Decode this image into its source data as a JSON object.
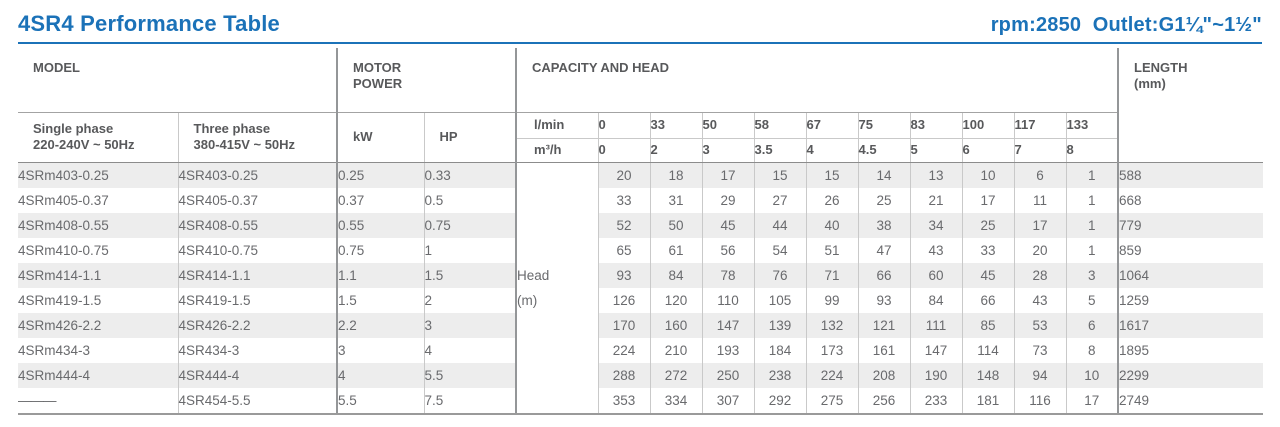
{
  "page": {
    "title": "4SR4 Performance Table",
    "subtitle_right": "rpm:2850  Outlet:G1¼\"~1½\"",
    "accent_color": "#1b72b8"
  },
  "table": {
    "headers": {
      "model": "MODEL",
      "motor_power_line1": "MOTOR",
      "motor_power_line2": "POWER",
      "capacity_and_head": "CAPACITY AND HEAD",
      "length_line1": "LENGTH",
      "length_line2": "(mm)",
      "single_phase_line1": "Single phase",
      "single_phase_line2": "220-240V ~ 50Hz",
      "three_phase_line1": "Three phase",
      "three_phase_line2": "380-415V ~ 50Hz",
      "kw": "kW",
      "hp": "HP",
      "flow_lmin_label": "l/min",
      "flow_m3h_label": "m³/h",
      "head_label_line1": "Head",
      "head_label_line2": "(m)"
    },
    "flow_lmin": [
      "0",
      "33",
      "50",
      "58",
      "67",
      "75",
      "83",
      "100",
      "117",
      "133"
    ],
    "flow_m3h": [
      "0",
      "2",
      "3",
      "3.5",
      "4",
      "4.5",
      "5",
      "6",
      "7",
      "8"
    ],
    "rows": [
      {
        "single": "4SRm403-0.25",
        "three": "4SR403-0.25",
        "kw": "0.25",
        "hp": "0.33",
        "head": [
          "20",
          "18",
          "17",
          "15",
          "15",
          "14",
          "13",
          "10",
          "6",
          "1"
        ],
        "length": "588"
      },
      {
        "single": "4SRm405-0.37",
        "three": "4SR405-0.37",
        "kw": "0.37",
        "hp": "0.5",
        "head": [
          "33",
          "31",
          "29",
          "27",
          "26",
          "25",
          "21",
          "17",
          "11",
          "1"
        ],
        "length": "668"
      },
      {
        "single": "4SRm408-0.55",
        "three": "4SR408-0.55",
        "kw": "0.55",
        "hp": "0.75",
        "head": [
          "52",
          "50",
          "45",
          "44",
          "40",
          "38",
          "34",
          "25",
          "17",
          "1"
        ],
        "length": "779"
      },
      {
        "single": "4SRm410-0.75",
        "three": "4SR410-0.75",
        "kw": "0.75",
        "hp": "1",
        "head": [
          "65",
          "61",
          "56",
          "54",
          "51",
          "47",
          "43",
          "33",
          "20",
          "1"
        ],
        "length": "859"
      },
      {
        "single": "4SRm414-1.1",
        "three": "4SR414-1.1",
        "kw": "1.1",
        "hp": "1.5",
        "head": [
          "93",
          "84",
          "78",
          "76",
          "71",
          "66",
          "60",
          "45",
          "28",
          "3"
        ],
        "length": "1064"
      },
      {
        "single": "4SRm419-1.5",
        "three": "4SR419-1.5",
        "kw": "1.5",
        "hp": "2",
        "head": [
          "126",
          "120",
          "110",
          "105",
          "99",
          "93",
          "84",
          "66",
          "43",
          "5"
        ],
        "length": "1259"
      },
      {
        "single": "4SRm426-2.2",
        "three": "4SR426-2.2",
        "kw": "2.2",
        "hp": "3",
        "head": [
          "170",
          "160",
          "147",
          "139",
          "132",
          "121",
          "111",
          "85",
          "53",
          "6"
        ],
        "length": "1617"
      },
      {
        "single": "4SRm434-3",
        "three": "4SR434-3",
        "kw": "3",
        "hp": "4",
        "head": [
          "224",
          "210",
          "193",
          "184",
          "173",
          "161",
          "147",
          "114",
          "73",
          "8"
        ],
        "length": "1895"
      },
      {
        "single": "4SRm444-4",
        "three": "4SR444-4",
        "kw": "4",
        "hp": "5.5",
        "head": [
          "288",
          "272",
          "250",
          "238",
          "224",
          "208",
          "190",
          "148",
          "94",
          "10"
        ],
        "length": "2299"
      },
      {
        "single": "———",
        "three": "4SR454-5.5",
        "kw": "5.5",
        "hp": "7.5",
        "head": [
          "353",
          "334",
          "307",
          "292",
          "275",
          "256",
          "233",
          "181",
          "116",
          "17"
        ],
        "length": "2749"
      }
    ]
  }
}
